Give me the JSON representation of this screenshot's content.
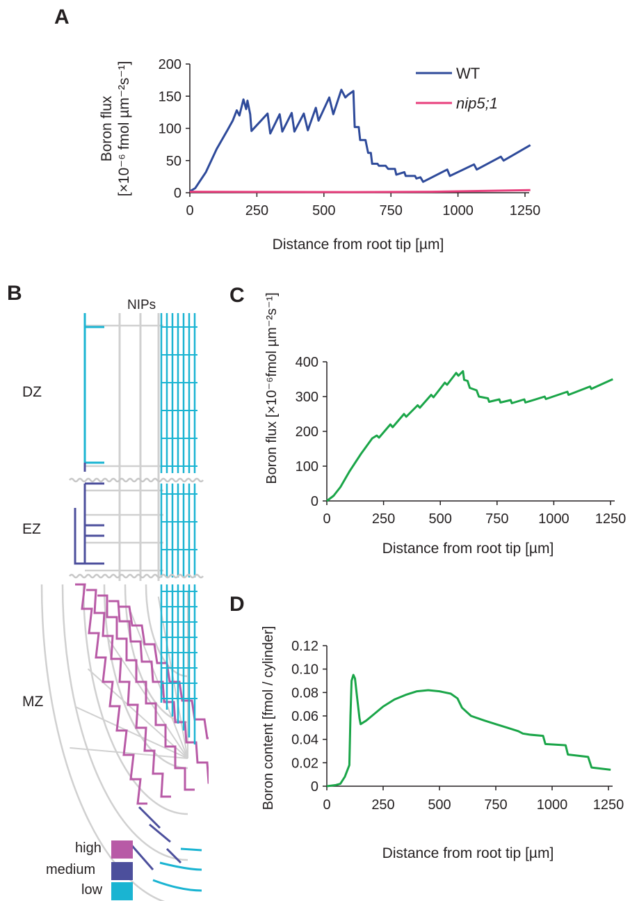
{
  "panels": {
    "a": "A",
    "b": "B",
    "c": "C",
    "d": "D"
  },
  "diagram_b": {
    "header": "NIPs",
    "zones": [
      "DZ",
      "EZ",
      "MZ"
    ],
    "legend": [
      {
        "label": "high",
        "color": "#b85aa6"
      },
      {
        "label": "medium",
        "color": "#4c4f9c"
      },
      {
        "label": "low",
        "color": "#1ab4d2"
      }
    ],
    "grid_color": "#d0d0d0"
  },
  "chart_data": [
    {
      "id": "A",
      "type": "line",
      "xlabel": "Distance from root tip [µm]",
      "ylabel_line1": "Boron flux",
      "ylabel_line2": "[×10⁻⁶ fmol µm⁻²s⁻¹]",
      "xlim": [
        0,
        1250
      ],
      "ylim": [
        0,
        200
      ],
      "xticks": [
        "0",
        "250",
        "500",
        "750",
        "1000",
        "1250"
      ],
      "yticks": [
        "0",
        "50",
        "100",
        "150",
        "200"
      ],
      "legend_position": "top-right",
      "grid": false,
      "series": [
        {
          "name": "WT",
          "color": "#2e4a9a",
          "points": [
            [
              0,
              2
            ],
            [
              20,
              7
            ],
            [
              60,
              32
            ],
            [
              100,
              68
            ],
            [
              140,
              97
            ],
            [
              160,
              112
            ],
            [
              175,
              128
            ],
            [
              185,
              120
            ],
            [
              200,
              145
            ],
            [
              210,
              130
            ],
            [
              215,
              143
            ],
            [
              225,
              122
            ],
            [
              230,
              96
            ],
            [
              290,
              123
            ],
            [
              300,
              92
            ],
            [
              335,
              122
            ],
            [
              345,
              95
            ],
            [
              380,
              124
            ],
            [
              390,
              95
            ],
            [
              425,
              123
            ],
            [
              440,
              97
            ],
            [
              470,
              132
            ],
            [
              480,
              112
            ],
            [
              520,
              148
            ],
            [
              535,
              122
            ],
            [
              565,
              160
            ],
            [
              580,
              148
            ],
            [
              590,
              152
            ],
            [
              610,
              158
            ],
            [
              615,
              102
            ],
            [
              630,
              102
            ],
            [
              635,
              82
            ],
            [
              655,
              82
            ],
            [
              665,
              62
            ],
            [
              675,
              62
            ],
            [
              680,
              45
            ],
            [
              700,
              45
            ],
            [
              705,
              42
            ],
            [
              730,
              42
            ],
            [
              740,
              37
            ],
            [
              765,
              37
            ],
            [
              770,
              28
            ],
            [
              800,
              32
            ],
            [
              805,
              26
            ],
            [
              840,
              26
            ],
            [
              845,
              22
            ],
            [
              860,
              24
            ],
            [
              870,
              17
            ],
            [
              960,
              36
            ],
            [
              970,
              26
            ],
            [
              1060,
              44
            ],
            [
              1070,
              36
            ],
            [
              1160,
              56
            ],
            [
              1170,
              50
            ],
            [
              1270,
              74
            ]
          ]
        },
        {
          "name": "nip5;1",
          "color": "#e83e7c",
          "points": [
            [
              0,
              1.5
            ],
            [
              300,
              1.2
            ],
            [
              600,
              1
            ],
            [
              900,
              1.5
            ],
            [
              1270,
              4
            ]
          ]
        }
      ]
    },
    {
      "id": "C",
      "type": "line",
      "xlabel": "Distance from root tip [µm]",
      "ylabel": "Boron flux [×10⁻⁶fmol µm⁻²s⁻¹]",
      "xlim": [
        0,
        1250
      ],
      "ylim": [
        0,
        400
      ],
      "xticks": [
        "0",
        "250",
        "500",
        "750",
        "1000",
        "1250"
      ],
      "yticks": [
        "0",
        "100",
        "200",
        "300",
        "400"
      ],
      "grid": false,
      "series": [
        {
          "color": "#1aa548",
          "points": [
            [
              0,
              0
            ],
            [
              30,
              15
            ],
            [
              60,
              40
            ],
            [
              100,
              85
            ],
            [
              150,
              135
            ],
            [
              200,
              180
            ],
            [
              220,
              188
            ],
            [
              230,
              182
            ],
            [
              280,
              220
            ],
            [
              290,
              212
            ],
            [
              340,
              250
            ],
            [
              350,
              242
            ],
            [
              400,
              275
            ],
            [
              410,
              268
            ],
            [
              460,
              305
            ],
            [
              470,
              298
            ],
            [
              520,
              340
            ],
            [
              530,
              334
            ],
            [
              570,
              368
            ],
            [
              580,
              360
            ],
            [
              600,
              373
            ],
            [
              605,
              348
            ],
            [
              620,
              345
            ],
            [
              630,
              325
            ],
            [
              660,
              318
            ],
            [
              670,
              300
            ],
            [
              710,
              295
            ],
            [
              715,
              285
            ],
            [
              760,
              292
            ],
            [
              765,
              283
            ],
            [
              810,
              290
            ],
            [
              815,
              281
            ],
            [
              870,
              292
            ],
            [
              875,
              283
            ],
            [
              960,
              300
            ],
            [
              965,
              293
            ],
            [
              1060,
              314
            ],
            [
              1065,
              305
            ],
            [
              1160,
              329
            ],
            [
              1165,
              322
            ],
            [
              1260,
              350
            ]
          ]
        }
      ]
    },
    {
      "id": "D",
      "type": "line",
      "xlabel": "Distance from root tip [µm]",
      "ylabel": "Boron content [fmol / cylinder]",
      "xlim": [
        0,
        1250
      ],
      "ylim": [
        0,
        0.12
      ],
      "xticks": [
        "0",
        "250",
        "500",
        "750",
        "1000",
        "1250"
      ],
      "yticks": [
        "0",
        "0.02",
        "0.04",
        "0.06",
        "0.08",
        "0.10",
        "0.12"
      ],
      "grid": false,
      "series": [
        {
          "color": "#1aa548",
          "points": [
            [
              0,
              0
            ],
            [
              40,
              0.001
            ],
            [
              60,
              0.002
            ],
            [
              80,
              0.008
            ],
            [
              100,
              0.018
            ],
            [
              105,
              0.06
            ],
            [
              110,
              0.09
            ],
            [
              118,
              0.095
            ],
            [
              125,
              0.092
            ],
            [
              135,
              0.075
            ],
            [
              145,
              0.058
            ],
            [
              150,
              0.053
            ],
            [
              175,
              0.056
            ],
            [
              200,
              0.06
            ],
            [
              250,
              0.068
            ],
            [
              300,
              0.074
            ],
            [
              350,
              0.078
            ],
            [
              400,
              0.081
            ],
            [
              450,
              0.082
            ],
            [
              500,
              0.081
            ],
            [
              550,
              0.079
            ],
            [
              580,
              0.075
            ],
            [
              600,
              0.067
            ],
            [
              640,
              0.06
            ],
            [
              700,
              0.056
            ],
            [
              750,
              0.053
            ],
            [
              800,
              0.05
            ],
            [
              850,
              0.047
            ],
            [
              870,
              0.045
            ],
            [
              900,
              0.044
            ],
            [
              960,
              0.043
            ],
            [
              970,
              0.036
            ],
            [
              1060,
              0.035
            ],
            [
              1070,
              0.027
            ],
            [
              1160,
              0.025
            ],
            [
              1175,
              0.016
            ],
            [
              1260,
              0.014
            ]
          ]
        }
      ]
    }
  ]
}
